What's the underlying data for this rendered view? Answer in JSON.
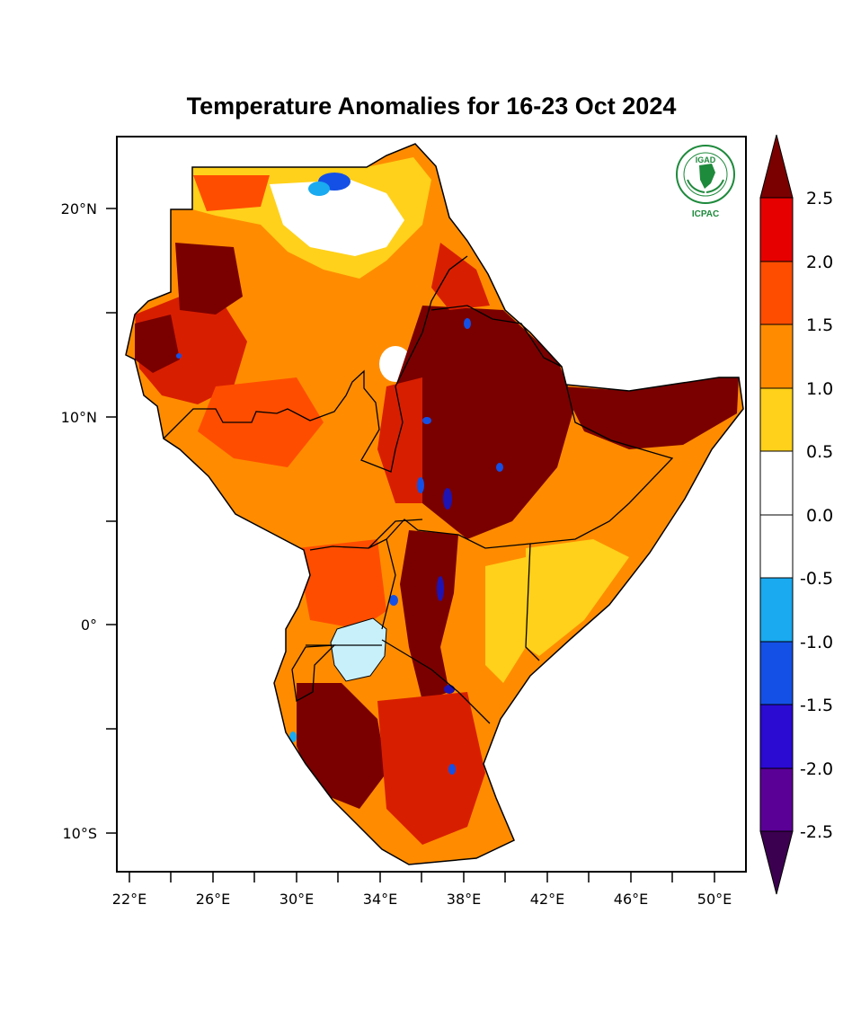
{
  "title": "Temperature Anomalies for 16-23 Oct 2024",
  "logo": {
    "top_text": "IGAD",
    "bottom_text": "ICPAC",
    "color": "#1e8a3c"
  },
  "x_axis_labels": [
    "22°E",
    "26°E",
    "30°E",
    "34°E",
    "38°E",
    "42°E",
    "46°E",
    "50°E"
  ],
  "y_axis_labels": [
    "20°N",
    "10°N",
    "0°",
    "10°S"
  ],
  "colorbar": {
    "labels": [
      "2.5",
      "2.0",
      "1.5",
      "1.0",
      "0.5",
      "0.0",
      "-0.5",
      "-1.0",
      "-1.5",
      "-2.0",
      "-2.5"
    ],
    "colors": [
      "#7a0000",
      "#e60000",
      "#ff4d00",
      "#ff8c00",
      "#ffd11a",
      "#ffffff",
      "#ffffff",
      "#19aaf0",
      "#1450e6",
      "#2b0ad2",
      "#5a0096",
      "#3c0050"
    ]
  },
  "map_palette": {
    "deep_red": "#7a0000",
    "red": "#d81e00",
    "orange_red": "#ff4d00",
    "orange": "#ff8c00",
    "yellow": "#ffd11a",
    "white": "#ffffff",
    "light_blue": "#c8f0fa",
    "blue": "#1450e6",
    "dark_blue": "#1e14b4"
  }
}
